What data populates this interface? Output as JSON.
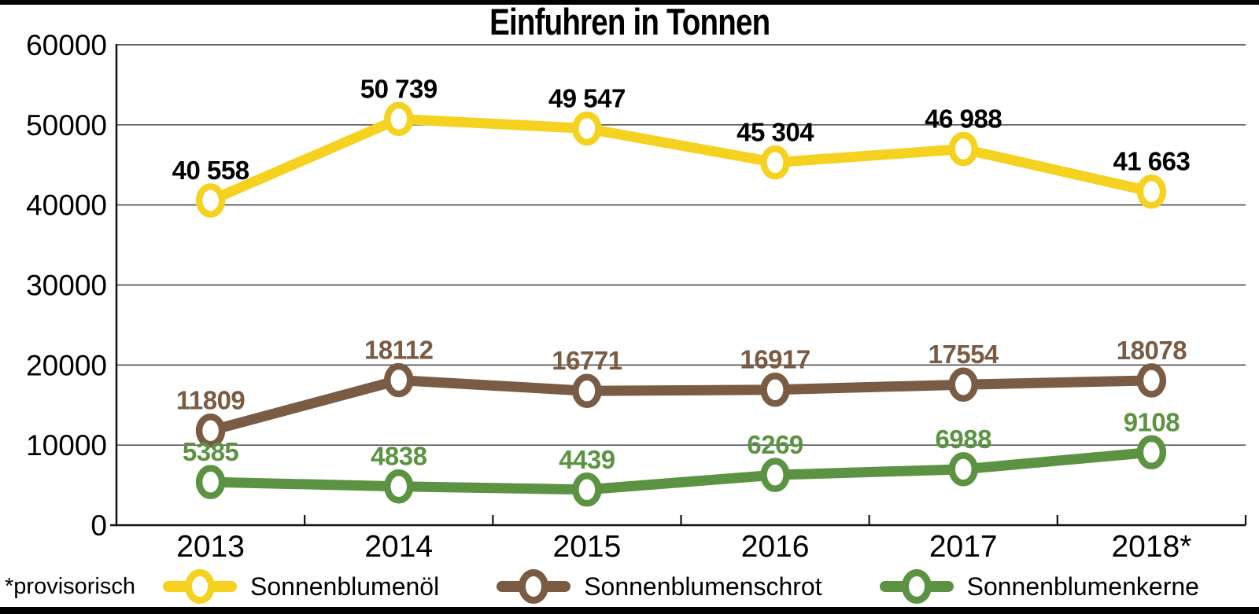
{
  "title": "Einfuhren in Tonnen",
  "footnote": "*provisorisch",
  "colors": {
    "axis": "#111111",
    "grid": "#555555",
    "tick_label": "#000000",
    "background": "#ffffff",
    "border_bars": "#000000"
  },
  "chart_data": {
    "type": "line",
    "title": "Einfuhren in Tonnen",
    "categories": [
      "2013",
      "2014",
      "2015",
      "2016",
      "2017",
      "2018*"
    ],
    "series": [
      {
        "name": "Sonnenblumenöl",
        "color": "#F5D120",
        "label_color": "#000000",
        "values": [
          40558,
          50739,
          49547,
          45304,
          46988,
          41663
        ],
        "labels": [
          "40 558",
          "50 739",
          "49 547",
          "45 304",
          "46 988",
          "41 663"
        ]
      },
      {
        "name": "Sonnenblumenschrot",
        "color": "#7A5B43",
        "label_color": "#7A5B43",
        "values": [
          11809,
          18112,
          16771,
          16917,
          17554,
          18078
        ],
        "labels": [
          "11809",
          "18112",
          "16771",
          "16917",
          "17554",
          "18078"
        ]
      },
      {
        "name": "Sonnenblumenkerne",
        "color": "#5B9343",
        "label_color": "#5B9343",
        "values": [
          5385,
          4838,
          4439,
          6269,
          6988,
          9108
        ],
        "labels": [
          "5385",
          "4838",
          "4439",
          "6269",
          "6988",
          "9108"
        ]
      }
    ],
    "ylim": [
      0,
      60000
    ],
    "ytick_step": 10000,
    "yticks": [
      "0",
      "10000",
      "20000",
      "30000",
      "40000",
      "50000",
      "60000"
    ],
    "grid": "horizontal",
    "legend_position": "bottom",
    "footnote": "*provisorisch"
  }
}
